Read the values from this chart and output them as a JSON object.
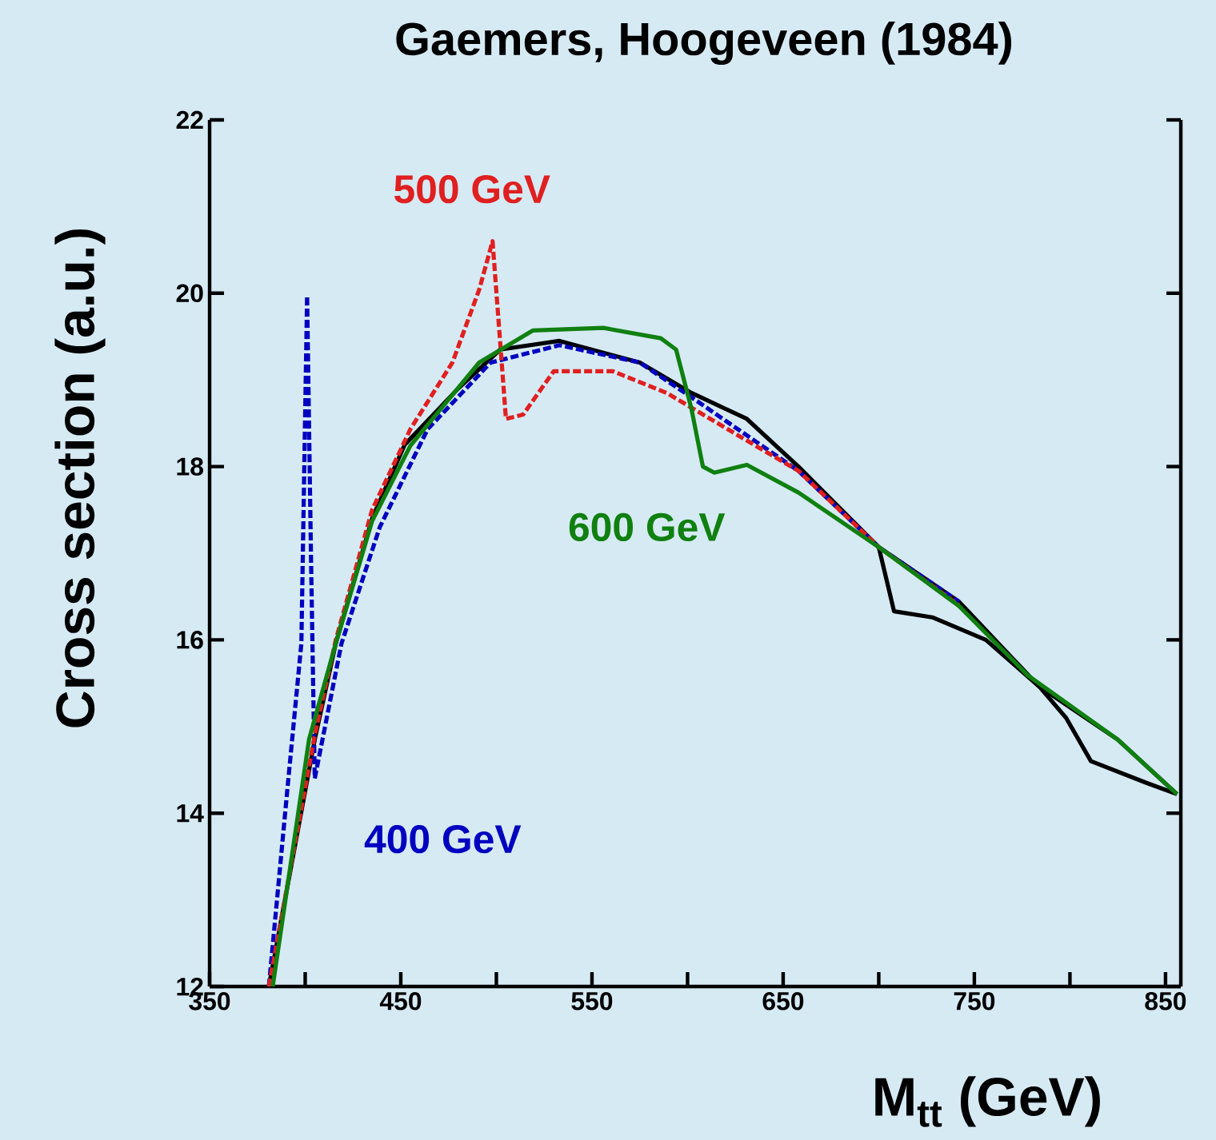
{
  "chart_data": {
    "type": "line",
    "title": "Gaemers, Hoogeveen (1984)",
    "xlabel": "M$_{tt}$ (GeV)",
    "ylabel": "Cross section (a.u.)",
    "xlim": [
      350,
      858
    ],
    "ylim": [
      12,
      22
    ],
    "xticks": [
      350,
      {
        "value": 400,
        "label": null
      },
      450,
      {
        "value": 500,
        "label": null
      },
      550,
      {
        "value": 600,
        "label": null
      },
      650,
      {
        "value": 700,
        "label": null
      },
      750,
      {
        "value": 800,
        "label": null
      },
      850
    ],
    "yticks": [
      12,
      14,
      16,
      18,
      20,
      22
    ],
    "series": [
      {
        "color": "#000000",
        "line_style": "solid",
        "x": [
          690,
          700,
          708,
          728,
          756,
          784,
          798,
          811,
          840,
          856
        ],
        "values": [
          17.25,
          17.07,
          16.33,
          16.26,
          16.0,
          15.46,
          15.1,
          14.6,
          14.35,
          14.22
        ]
      },
      {
        "color": "#000000",
        "line_style": "solid",
        "x": [
          381,
          405,
          416,
          435,
          452,
          480,
          502,
          533,
          575,
          602,
          631,
          658,
          700,
          742,
          784,
          825,
          856
        ],
        "values": [
          12,
          14.85,
          15.96,
          17.4,
          18.25,
          18.9,
          19.35,
          19.45,
          19.2,
          18.85,
          18.55,
          18.0,
          17.07,
          16.44,
          15.46,
          14.85,
          14.22
        ]
      },
      {
        "name": "400 GeV",
        "color": "#0000c0",
        "line_style": "dashed",
        "x": [
          381,
          391,
          398,
          401,
          403,
          405,
          419,
          439,
          464,
          497,
          533,
          575,
          602,
          658,
          700,
          742
        ],
        "values": [
          12,
          14.35,
          15.96,
          19.97,
          17,
          14.4,
          15.96,
          17.3,
          18.43,
          19.2,
          19.4,
          19.2,
          18.8,
          17.95,
          17.07,
          16.44
        ]
      },
      {
        "name": "500 GeV",
        "color": "#e02020",
        "line_style": "dashed",
        "x": [
          381,
          405,
          416,
          435,
          455,
          477,
          491,
          498,
          505,
          514,
          530,
          561,
          589,
          631,
          658,
          700,
          742
        ],
        "values": [
          12,
          14.9,
          16.0,
          17.5,
          18.43,
          19.2,
          20.04,
          20.6,
          18.55,
          18.6,
          19.1,
          19.1,
          18.85,
          18.3,
          17.95,
          17.07,
          16.4
        ]
      },
      {
        "name": "600 GeV",
        "color": "#108010",
        "line_style": "solid",
        "x": [
          383,
          402,
          416,
          435,
          455,
          491,
          519,
          556,
          586,
          594,
          602,
          608,
          614,
          631,
          658,
          700,
          742,
          778,
          825,
          856
        ],
        "values": [
          12,
          14.85,
          15.96,
          17.37,
          18.24,
          19.2,
          19.57,
          19.6,
          19.48,
          19.35,
          18.67,
          18.0,
          17.93,
          18.02,
          17.7,
          17.07,
          16.39,
          15.59,
          14.85,
          14.22
        ]
      }
    ]
  }
}
